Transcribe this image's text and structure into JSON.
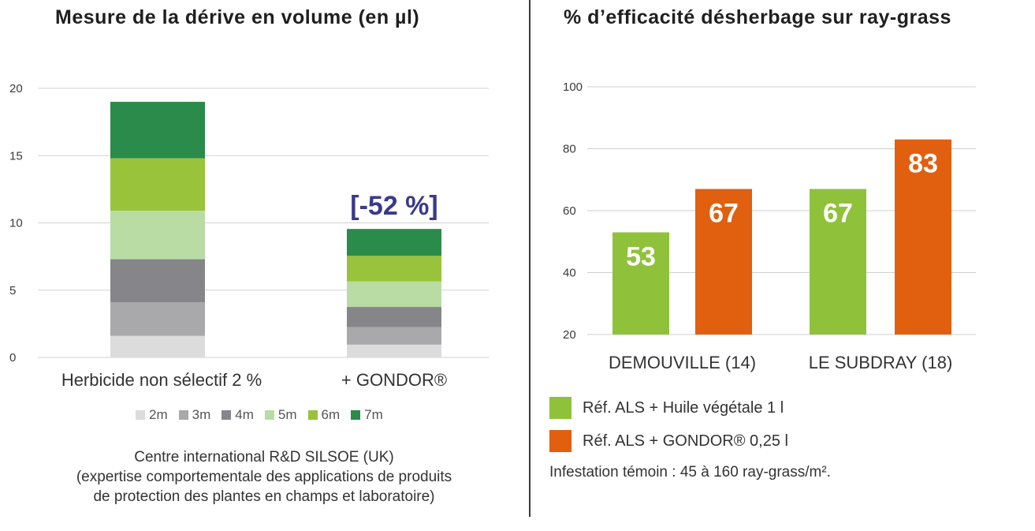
{
  "chart_data": [
    {
      "type": "bar",
      "stacked": true,
      "title": "Mesure de la dérive en volume (en µl)",
      "categories": [
        "Herbicide non sélectif 2 %",
        "+ GONDOR®"
      ],
      "ylim": [
        0,
        20
      ],
      "yticks": [
        "0",
        "5",
        "10",
        "15",
        "20"
      ],
      "grid": true,
      "series": [
        {
          "name": "2m",
          "color": "#dcdcdc",
          "values": [
            1.6,
            0.95
          ]
        },
        {
          "name": "3m",
          "color": "#a9a9ab",
          "values": [
            2.5,
            1.3
          ]
        },
        {
          "name": "4m",
          "color": "#86858a",
          "values": [
            3.2,
            1.5
          ]
        },
        {
          "name": "5m",
          "color": "#b8dca4",
          "values": [
            3.6,
            1.9
          ]
        },
        {
          "name": "6m",
          "color": "#99c33a",
          "values": [
            3.9,
            1.9
          ]
        },
        {
          "name": "7m",
          "color": "#2a8b4a",
          "values": [
            4.2,
            2.0
          ]
        }
      ],
      "annotation": "[-52 %]",
      "annotation_color": "#3a3a88",
      "legend_position": "bottom",
      "note_lines": [
        "Centre international R&D SILSOE (UK)",
        "(expertise comportementale des applications de produits",
        "de protection des plantes en champs et laboratoire)"
      ]
    },
    {
      "type": "bar",
      "title": "% d’efficacité désherbage sur ray-grass",
      "categories": [
        "DEMOUVILLE (14)",
        "LE SUBDRAY (18)"
      ],
      "ylim": [
        20,
        100
      ],
      "yticks": [
        "20",
        "40",
        "60",
        "80",
        "100"
      ],
      "grid": true,
      "series": [
        {
          "name": "Réf. ALS + Huile végétale 1 l",
          "color": "#8fc23a",
          "values": [
            53,
            67
          ]
        },
        {
          "name": "Réf. ALS + GONDOR® 0,25 l",
          "color": "#e0600f",
          "values": [
            67,
            83
          ]
        }
      ],
      "data_labels": [
        "53",
        "67",
        "67",
        "83"
      ],
      "legend_position": "bottom-left",
      "footnote": "Infestation témoin : 45 à 160 ray-grass/m²."
    }
  ]
}
